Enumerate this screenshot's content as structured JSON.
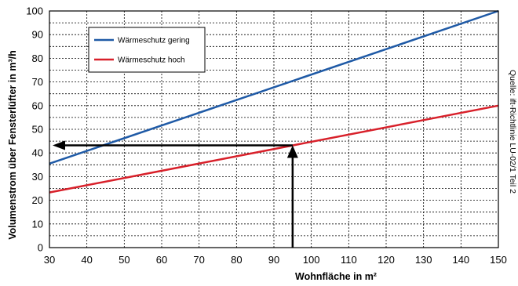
{
  "chart_data": {
    "type": "line",
    "xlabel": "Wohnfläche in m²",
    "ylabel": "Volumenstrom über Fensterlüfter in m³/h",
    "xlim": [
      30,
      150
    ],
    "ylim": [
      0,
      100
    ],
    "xticks": [
      30,
      40,
      50,
      60,
      70,
      80,
      90,
      100,
      110,
      120,
      130,
      140,
      150
    ],
    "yticks": [
      0,
      5,
      10,
      15,
      20,
      25,
      30,
      35,
      40,
      45,
      50,
      55,
      60,
      65,
      70,
      75,
      80,
      85,
      90,
      95,
      100
    ],
    "ytick_labels_shown": [
      0,
      10,
      20,
      30,
      40,
      50,
      60,
      70,
      80,
      90,
      100
    ],
    "grid": true,
    "legend_position": "top-left",
    "series": [
      {
        "name": "Wärmeschutz gering",
        "color": "#1f5aa6",
        "x": [
          30,
          150
        ],
        "y": [
          35.5,
          100
        ]
      },
      {
        "name": "Wärmeschutz hoch",
        "color": "#d8202a",
        "x": [
          30,
          150
        ],
        "y": [
          23.3,
          60
        ]
      }
    ],
    "annotations": {
      "arrow_up": {
        "x": 95,
        "from_y": 0,
        "to_y": 43.2
      },
      "arrow_left": {
        "y": 43.2,
        "from_x": 95,
        "to_x": 30
      }
    },
    "source_note": "Quelle: ift-Richtlinie LU-02/1 Teil 2"
  }
}
